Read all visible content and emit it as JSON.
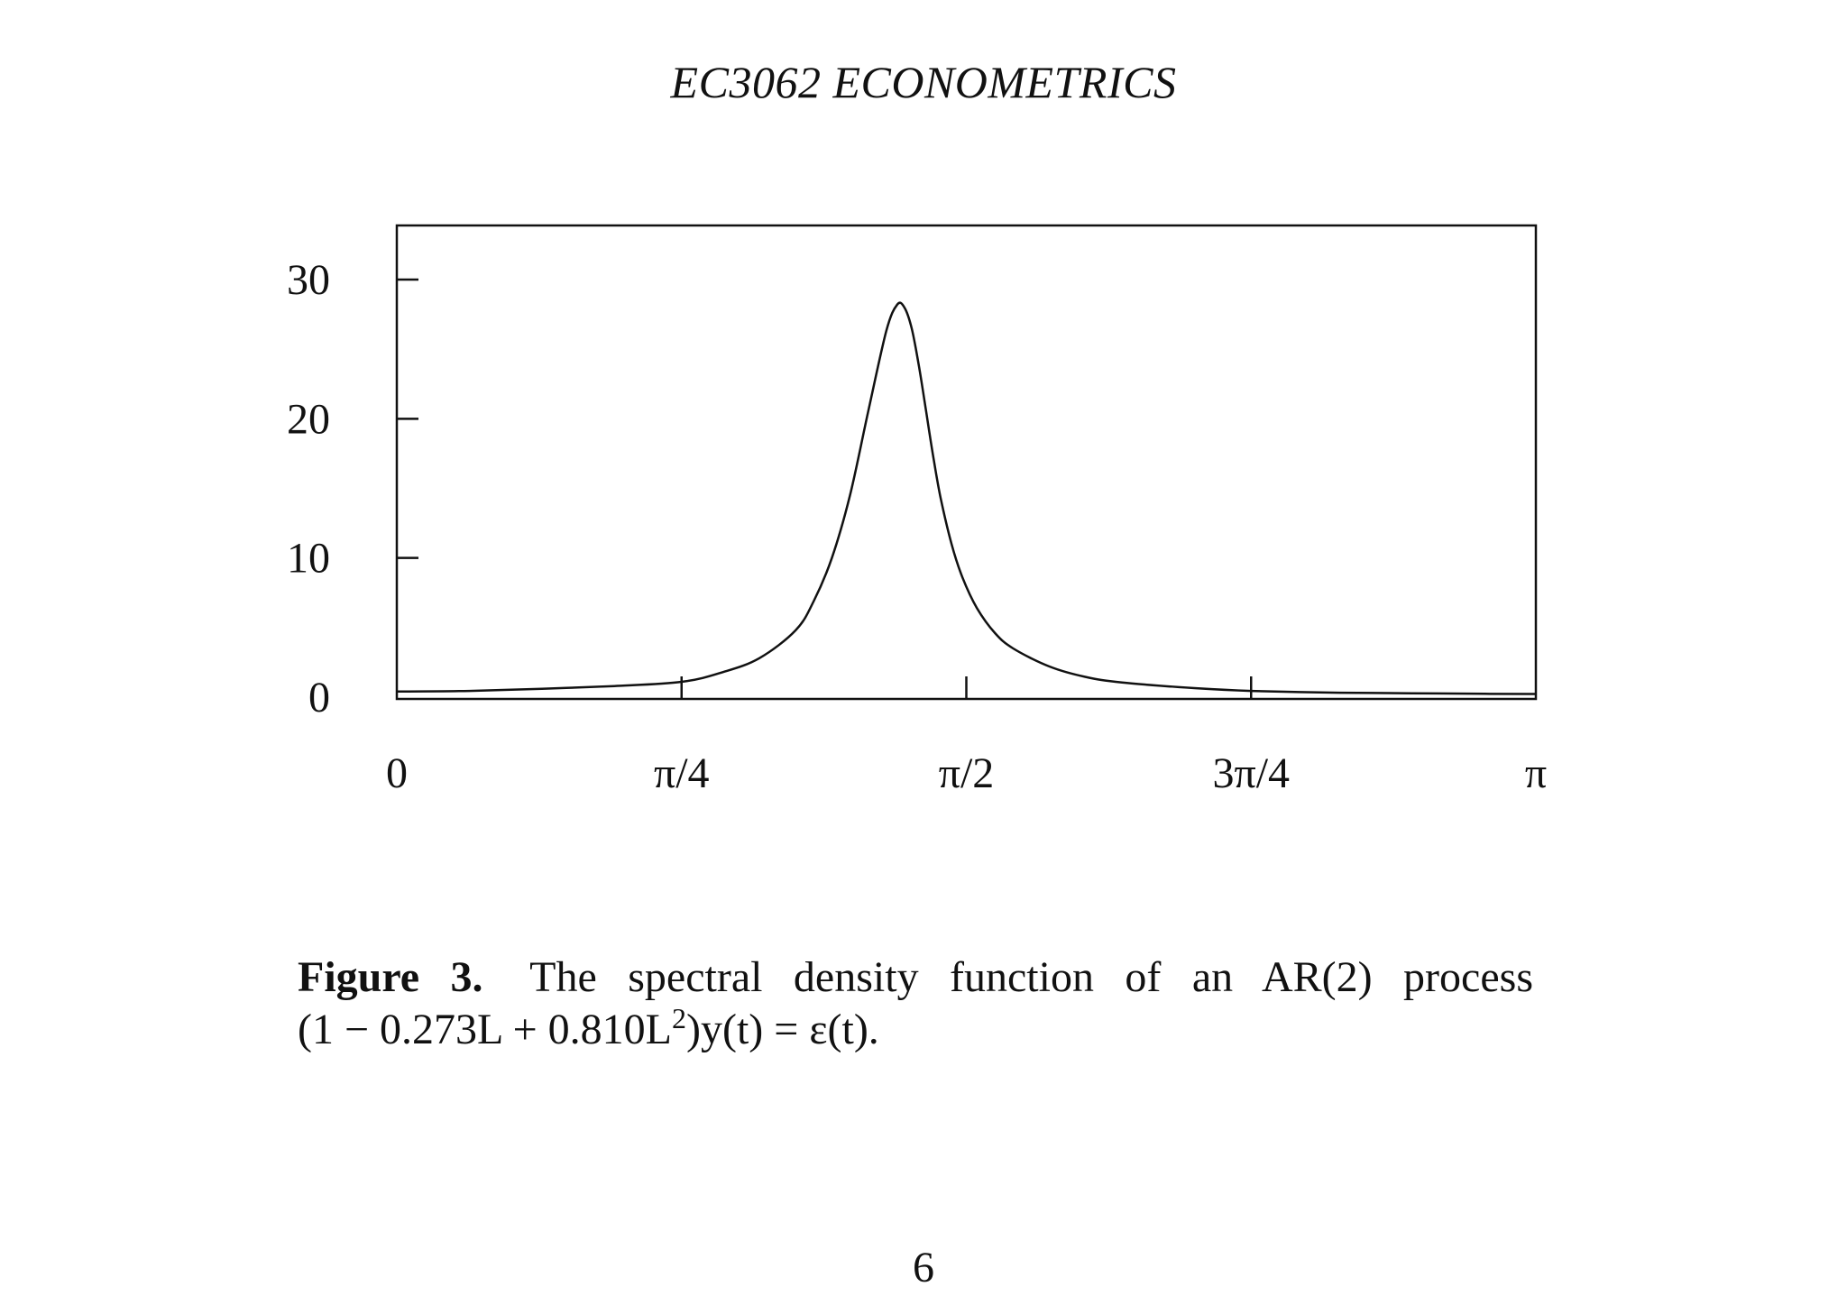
{
  "header": {
    "title": "EC3062 ECONOMETRICS"
  },
  "chart_data": {
    "type": "line",
    "title": "",
    "xlabel": "",
    "ylabel": "",
    "x_range": [
      0,
      3.14159
    ],
    "ylim": [
      0,
      34
    ],
    "y_ticks": [
      0,
      10,
      20,
      30
    ],
    "y_tick_labels": [
      "0",
      "10",
      "20",
      "30"
    ],
    "x_ticks": [
      0,
      0.7854,
      1.5708,
      2.3562,
      3.14159
    ],
    "x_tick_labels": [
      "0",
      "π/4",
      "π/2",
      "3π/4",
      "π"
    ],
    "grid": false,
    "series": [
      {
        "x": [
          0,
          0.2,
          0.4,
          0.6,
          0.7854,
          0.9,
          1.0,
          1.1,
          1.15,
          1.2,
          1.25,
          1.3,
          1.35,
          1.38,
          1.4,
          1.42,
          1.44,
          1.46,
          1.48,
          1.5,
          1.53,
          1.56,
          1.6,
          1.65,
          1.7,
          1.8,
          1.9,
          2.0,
          2.2,
          2.3562,
          2.6,
          2.8,
          3.0,
          3.14159
        ],
        "y": [
          0.4,
          0.45,
          0.6,
          0.8,
          1.1,
          1.8,
          2.8,
          4.8,
          6.9,
          10.0,
          14.5,
          20.5,
          26.3,
          28.2,
          28.0,
          26.5,
          23.8,
          20.5,
          17.2,
          14.3,
          11.0,
          8.6,
          6.4,
          4.6,
          3.5,
          2.2,
          1.45,
          1.05,
          0.65,
          0.45,
          0.32,
          0.28,
          0.24,
          0.23
        ]
      }
    ]
  },
  "caption": {
    "figure_label": "Figure 3.",
    "line1_text": "The spectral density function of an AR(2) process",
    "line2_text": "(1 − 0.273L + 0.810L",
    "line2_sup": "2",
    "line2_rest": ")y(t) = ε(t)."
  },
  "page_number": "6"
}
